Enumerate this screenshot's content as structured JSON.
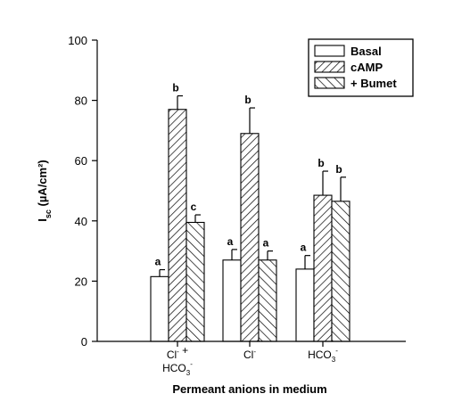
{
  "chart_data": {
    "type": "bar",
    "xlabel": "Permeant anions in medium",
    "ylabel": {
      "main": "I",
      "sub": "sc",
      "rest": " (µA/cm²)"
    },
    "ylim": [
      0,
      100
    ],
    "yticks": [
      "0",
      "20",
      "40",
      "60",
      "80",
      "100"
    ],
    "grid": false,
    "legend_position": "top-right",
    "categories": [
      {
        "parts": [
          {
            "text": "Cl",
            "sup": "-"
          },
          {
            "text": " +"
          }
        ],
        "line2": [
          {
            "text": "HCO",
            "sub": "3",
            "sup": "-"
          }
        ]
      },
      {
        "parts": [
          {
            "text": "Cl",
            "sup": "-"
          }
        ],
        "line2": []
      },
      {
        "parts": [
          {
            "text": "HCO",
            "sub": "3",
            "sup": "-"
          }
        ],
        "line2": []
      }
    ],
    "series": [
      {
        "name": "Basal",
        "pattern": "none",
        "values": [
          21.5,
          27,
          24
        ],
        "errors": [
          2.3,
          3.5,
          4.5
        ],
        "labels": [
          "a",
          "a",
          "a"
        ]
      },
      {
        "name": "cAMP",
        "pattern": "forward-hatch",
        "values": [
          77,
          69,
          48.5
        ],
        "errors": [
          4.5,
          8.5,
          8
        ],
        "labels": [
          "b",
          "b",
          "b"
        ]
      },
      {
        "name": "+ Bumet",
        "pattern": "back-hatch",
        "values": [
          39.5,
          27,
          46.5
        ],
        "errors": [
          2.5,
          3,
          8
        ],
        "labels": [
          "c",
          "a",
          "b"
        ]
      }
    ]
  }
}
